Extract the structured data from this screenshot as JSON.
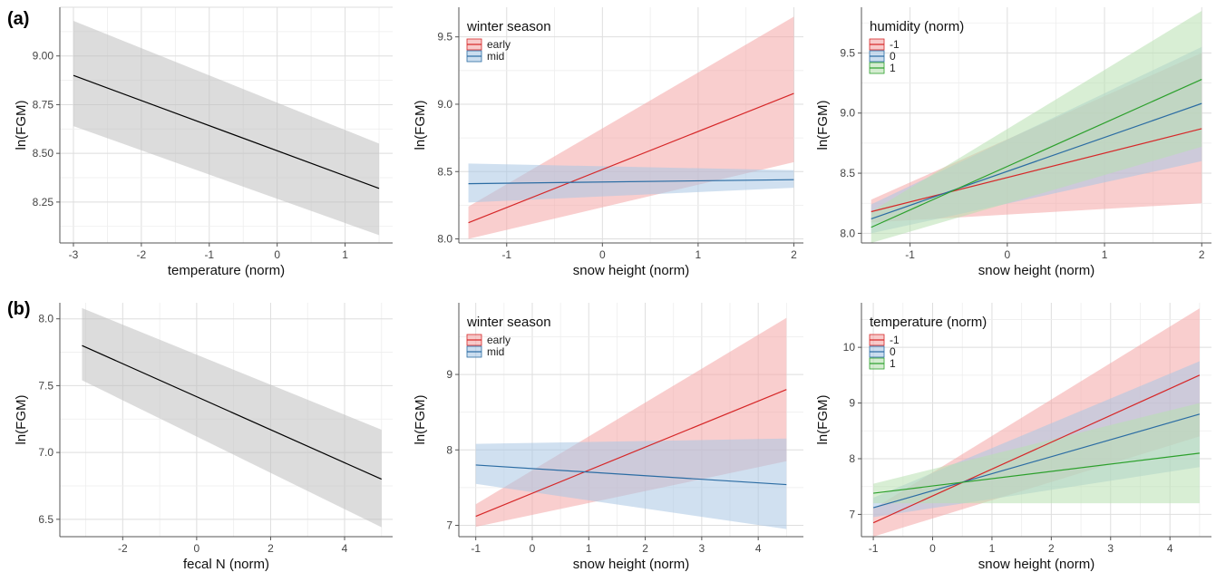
{
  "figure": {
    "panel_labels": [
      "(a)",
      "(b)"
    ]
  },
  "chart_data": [
    {
      "type": "line",
      "row": "(a)",
      "xlabel": "temperature (norm)",
      "ylabel": "ln(FGM)",
      "xlim": [
        -3.2,
        1.7
      ],
      "ylim": [
        8.04,
        9.25
      ],
      "xticks": [
        -3,
        -2,
        -1,
        0,
        1
      ],
      "yticks": [
        8.25,
        8.5,
        8.75,
        9.0
      ],
      "ytick_labels": [
        "8.25",
        "8.50",
        "8.75",
        "9.00"
      ],
      "legend_title": "",
      "grid": true,
      "series": [
        {
          "color": "#000000",
          "band": "#bfbfbf",
          "x": [
            -3,
            1.5
          ],
          "y": [
            8.9,
            8.32
          ],
          "lower": [
            8.64,
            8.08
          ],
          "upper": [
            9.18,
            8.55
          ]
        }
      ]
    },
    {
      "type": "line",
      "row": "(a)",
      "xlabel": "snow height (norm)",
      "ylabel": "ln(FGM)",
      "xlim": [
        -1.5,
        2.1
      ],
      "ylim": [
        7.97,
        9.72
      ],
      "xticks": [
        -1,
        0,
        1,
        2
      ],
      "yticks": [
        8.0,
        8.5,
        9.0,
        9.5
      ],
      "ytick_labels": [
        "8.0",
        "8.5",
        "9.0",
        "9.5"
      ],
      "legend_title": "winter season",
      "grid": true,
      "series": [
        {
          "name": "early",
          "color": "#d62728",
          "band": "#f4a6a6",
          "x": [
            -1.4,
            2
          ],
          "y": [
            8.12,
            9.08
          ],
          "lower": [
            8.0,
            8.57
          ],
          "upper": [
            8.24,
            9.65
          ]
        },
        {
          "name": "mid",
          "color": "#2b6ca3",
          "band": "#a9c6e4",
          "x": [
            -1.4,
            2
          ],
          "y": [
            8.41,
            8.44
          ],
          "lower": [
            8.27,
            8.38
          ],
          "upper": [
            8.56,
            8.51
          ]
        }
      ]
    },
    {
      "type": "line",
      "row": "(a)",
      "xlabel": "snow height (norm)",
      "ylabel": "ln(FGM)",
      "xlim": [
        -1.5,
        2.1
      ],
      "ylim": [
        7.92,
        9.88
      ],
      "xticks": [
        -1,
        0,
        1,
        2
      ],
      "yticks": [
        8.0,
        8.5,
        9.0,
        9.5
      ],
      "ytick_labels": [
        "8.0",
        "8.5",
        "9.0",
        "9.5"
      ],
      "legend_title": "humidity (norm)",
      "grid": true,
      "series": [
        {
          "name": "-1",
          "color": "#d62728",
          "band": "#f4a6a6",
          "x": [
            -1.4,
            2
          ],
          "y": [
            8.18,
            8.87
          ],
          "lower": [
            8.09,
            8.25
          ],
          "upper": [
            8.28,
            9.5
          ]
        },
        {
          "name": "0",
          "color": "#2b6ca3",
          "band": "#a9c6e4",
          "x": [
            -1.4,
            2
          ],
          "y": [
            8.12,
            9.08
          ],
          "lower": [
            8.0,
            8.6
          ],
          "upper": [
            8.24,
            9.55
          ]
        },
        {
          "name": "1",
          "color": "#2ca02c",
          "band": "#b8e0b0",
          "x": [
            -1.4,
            2
          ],
          "y": [
            8.05,
            9.28
          ],
          "lower": [
            7.92,
            8.72
          ],
          "upper": [
            8.18,
            9.85
          ]
        }
      ]
    },
    {
      "type": "line",
      "row": "(b)",
      "xlabel": "fecal N (norm)",
      "ylabel": "ln(FGM)",
      "xlim": [
        -3.7,
        5.3
      ],
      "ylim": [
        6.37,
        8.12
      ],
      "xticks": [
        -2,
        0,
        2,
        4
      ],
      "yticks": [
        6.5,
        7.0,
        7.5,
        8.0
      ],
      "ytick_labels": [
        "6.5",
        "7.0",
        "7.5",
        "8.0"
      ],
      "legend_title": "",
      "grid": true,
      "series": [
        {
          "color": "#000000",
          "band": "#bfbfbf",
          "x": [
            -3.1,
            5
          ],
          "y": [
            7.8,
            6.8
          ],
          "lower": [
            7.54,
            6.44
          ],
          "upper": [
            8.08,
            7.17
          ]
        }
      ]
    },
    {
      "type": "line",
      "row": "(b)",
      "xlabel": "snow height (norm)",
      "ylabel": "ln(FGM)",
      "xlim": [
        -1.3,
        4.8
      ],
      "ylim": [
        6.85,
        9.95
      ],
      "xticks": [
        -1,
        0,
        1,
        2,
        3,
        4
      ],
      "yticks": [
        7,
        8,
        9
      ],
      "ytick_labels": [
        "7",
        "8",
        "9"
      ],
      "legend_title": "winter season",
      "grid": true,
      "series": [
        {
          "name": "early",
          "color": "#d62728",
          "band": "#f4a6a6",
          "x": [
            -1,
            4.5
          ],
          "y": [
            7.12,
            8.8
          ],
          "lower": [
            6.98,
            7.85
          ],
          "upper": [
            7.28,
            9.75
          ]
        },
        {
          "name": "mid",
          "color": "#2b6ca3",
          "band": "#a9c6e4",
          "x": [
            -1,
            4.5
          ],
          "y": [
            7.8,
            7.54
          ],
          "lower": [
            7.55,
            6.95
          ],
          "upper": [
            8.08,
            8.15
          ]
        }
      ]
    },
    {
      "type": "line",
      "row": "(b)",
      "xlabel": "snow height (norm)",
      "ylabel": "ln(FGM)",
      "xlim": [
        -1.2,
        4.7
      ],
      "ylim": [
        6.6,
        10.8
      ],
      "xticks": [
        -1,
        0,
        1,
        2,
        3,
        4
      ],
      "yticks": [
        7,
        8,
        9,
        10
      ],
      "ytick_labels": [
        "7",
        "8",
        "9",
        "10"
      ],
      "legend_title": "temperature (norm)",
      "grid": true,
      "series": [
        {
          "name": "-1",
          "color": "#d62728",
          "band": "#f4a6a6",
          "x": [
            -1,
            4.5
          ],
          "y": [
            6.85,
            9.5
          ],
          "lower": [
            6.6,
            8.4
          ],
          "upper": [
            7.1,
            10.7
          ]
        },
        {
          "name": "0",
          "color": "#2b6ca3",
          "band": "#a9c6e4",
          "x": [
            -1,
            4.5
          ],
          "y": [
            7.12,
            8.8
          ],
          "lower": [
            6.95,
            7.85
          ],
          "upper": [
            7.3,
            9.75
          ]
        },
        {
          "name": "1",
          "color": "#2ca02c",
          "band": "#b8e0b0",
          "x": [
            -1,
            4.5
          ],
          "y": [
            7.38,
            8.1
          ],
          "lower": [
            7.2,
            7.2
          ],
          "upper": [
            7.55,
            9.0
          ]
        }
      ]
    }
  ]
}
